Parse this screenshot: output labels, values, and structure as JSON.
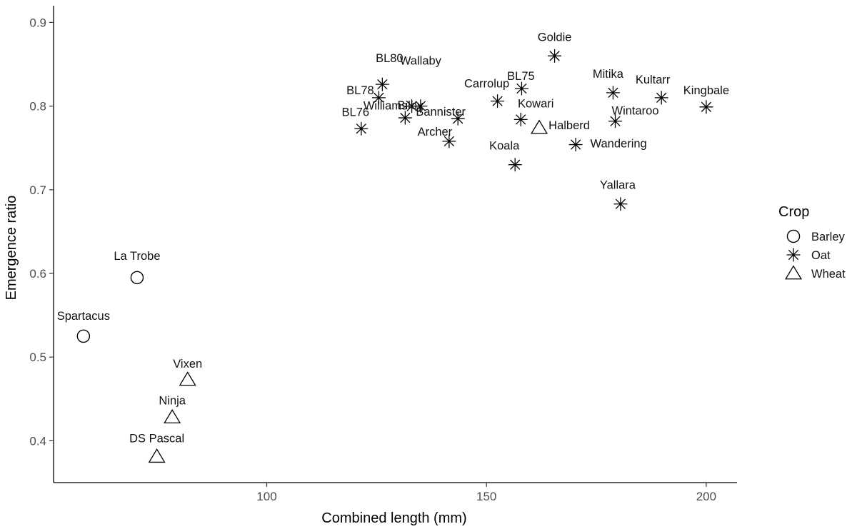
{
  "chart_data": {
    "type": "scatter",
    "xlabel": "Combined length (mm)",
    "ylabel": "Emergence ratio",
    "xlim": [
      51.5,
      207
    ],
    "ylim": [
      0.35,
      0.92
    ],
    "x_ticks": [
      100,
      150,
      200
    ],
    "y_ticks": [
      0.4,
      0.5,
      0.6,
      0.7,
      0.8,
      0.9
    ],
    "grid": false,
    "legend": {
      "title": "Crop",
      "placement": "right",
      "entries": [
        {
          "label": "Barley",
          "shape": "circle"
        },
        {
          "label": "Oat",
          "shape": "asterisk"
        },
        {
          "label": "Wheat",
          "shape": "triangle"
        }
      ]
    },
    "points": [
      {
        "name": "La Trobe",
        "crop": "Barley",
        "x": 70.5,
        "y": 0.595
      },
      {
        "name": "Spartacus",
        "crop": "Barley",
        "x": 58.3,
        "y": 0.525
      },
      {
        "name": "Vixen",
        "crop": "Wheat",
        "x": 82.0,
        "y": 0.473
      },
      {
        "name": "Ninja",
        "crop": "Wheat",
        "x": 78.5,
        "y": 0.428
      },
      {
        "name": "DS Pascal",
        "crop": "Wheat",
        "x": 75.0,
        "y": 0.381
      },
      {
        "name": "Halberd",
        "crop": "Wheat",
        "x": 162.0,
        "y": 0.774
      },
      {
        "name": "BL80",
        "crop": "Oat",
        "x": 126.3,
        "y": 0.826
      },
      {
        "name": "BL78",
        "crop": "Oat",
        "x": 125.5,
        "y": 0.81
      },
      {
        "name": "Williams",
        "crop": "Oat",
        "x": 133.0,
        "y": 0.8
      },
      {
        "name": "BL76",
        "crop": "Oat",
        "x": 121.5,
        "y": 0.773
      },
      {
        "name": "Bilby",
        "crop": "Oat",
        "x": 131.5,
        "y": 0.786
      },
      {
        "name": "Wallaby",
        "crop": "Oat",
        "x": 135.0,
        "y": 0.8
      },
      {
        "name": "Bannister",
        "crop": "Oat",
        "x": 143.5,
        "y": 0.785
      },
      {
        "name": "Archer",
        "crop": "Oat",
        "x": 141.5,
        "y": 0.758
      },
      {
        "name": "Carrolup",
        "crop": "Oat",
        "x": 152.5,
        "y": 0.806
      },
      {
        "name": "BL75",
        "crop": "Oat",
        "x": 158.0,
        "y": 0.821
      },
      {
        "name": "Goldie",
        "crop": "Oat",
        "x": 165.5,
        "y": 0.86
      },
      {
        "name": "Kowari",
        "crop": "Oat",
        "x": 157.8,
        "y": 0.784
      },
      {
        "name": "Koala",
        "crop": "Oat",
        "x": 156.5,
        "y": 0.73
      },
      {
        "name": "Wandering",
        "crop": "Oat",
        "x": 170.3,
        "y": 0.754
      },
      {
        "name": "Mitika",
        "crop": "Oat",
        "x": 178.8,
        "y": 0.816
      },
      {
        "name": "Wintaroo",
        "crop": "Oat",
        "x": 179.3,
        "y": 0.782
      },
      {
        "name": "Kultarr",
        "crop": "Oat",
        "x": 189.8,
        "y": 0.81
      },
      {
        "name": "Kingbale",
        "crop": "Oat",
        "x": 200.0,
        "y": 0.799
      },
      {
        "name": "Yallara",
        "crop": "Oat",
        "x": 180.5,
        "y": 0.683
      }
    ]
  }
}
